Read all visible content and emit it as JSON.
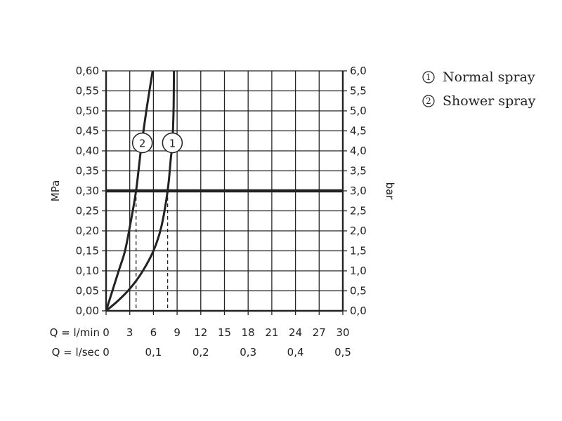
{
  "chart_data": {
    "type": "line",
    "title": "",
    "x_axis": {
      "label": "Q = l/min",
      "range": [
        0,
        30
      ],
      "ticks": [
        "0",
        "3",
        "6",
        "9",
        "12",
        "15",
        "18",
        "21",
        "24",
        "27",
        "30"
      ]
    },
    "x_axis_secondary": {
      "label": "Q = l/sec",
      "ticks": [
        {
          "x": 0,
          "label": "0"
        },
        {
          "x": 6,
          "label": "0,1"
        },
        {
          "x": 12,
          "label": "0,2"
        },
        {
          "x": 18,
          "label": "0,3"
        },
        {
          "x": 24,
          "label": "0,4"
        },
        {
          "x": 30,
          "label": "0,5"
        }
      ]
    },
    "y_axis_left": {
      "label": "MPa",
      "range": [
        0,
        0.6
      ],
      "ticks": [
        "0,00",
        "0,05",
        "0,10",
        "0,15",
        "0,20",
        "0,25",
        "0,30",
        "0,35",
        "0,40",
        "0,45",
        "0,50",
        "0,55",
        "0,60"
      ]
    },
    "y_axis_right": {
      "label": "bar",
      "range": [
        0,
        6
      ],
      "ticks": [
        "0,0",
        "0,5",
        "1,0",
        "1,5",
        "2,0",
        "2,5",
        "3,0",
        "3,5",
        "4,0",
        "4,5",
        "5,0",
        "5,5",
        "6,0"
      ]
    },
    "grid": true,
    "legend_position": "top-right",
    "reference_line": {
      "y": 0.3
    },
    "series": [
      {
        "id": "1",
        "name": "Normal spray",
        "points": [
          [
            0,
            0
          ],
          [
            1.5,
            0.025
          ],
          [
            3,
            0.055
          ],
          [
            4.5,
            0.095
          ],
          [
            6,
            0.15
          ],
          [
            7,
            0.21
          ],
          [
            7.8,
            0.3
          ],
          [
            8.2,
            0.38
          ],
          [
            8.4,
            0.42
          ],
          [
            8.55,
            0.5
          ],
          [
            8.6,
            0.6
          ]
        ],
        "marker": {
          "x": 8.4,
          "y": 0.42,
          "label": "1"
        },
        "drop_x": 7.8
      },
      {
        "id": "2",
        "name": "Shower spray",
        "points": [
          [
            0,
            0
          ],
          [
            0.8,
            0.05
          ],
          [
            1.6,
            0.1
          ],
          [
            2.4,
            0.15
          ],
          [
            3.1,
            0.22
          ],
          [
            3.8,
            0.3
          ],
          [
            4.4,
            0.4
          ],
          [
            5.1,
            0.5
          ],
          [
            5.9,
            0.6
          ]
        ],
        "marker": {
          "x": 4.6,
          "y": 0.42,
          "label": "2"
        },
        "drop_x": 3.8
      }
    ]
  },
  "legend": {
    "items": [
      {
        "num": "1",
        "label": "Normal spray"
      },
      {
        "num": "2",
        "label": "Shower spray"
      }
    ]
  }
}
